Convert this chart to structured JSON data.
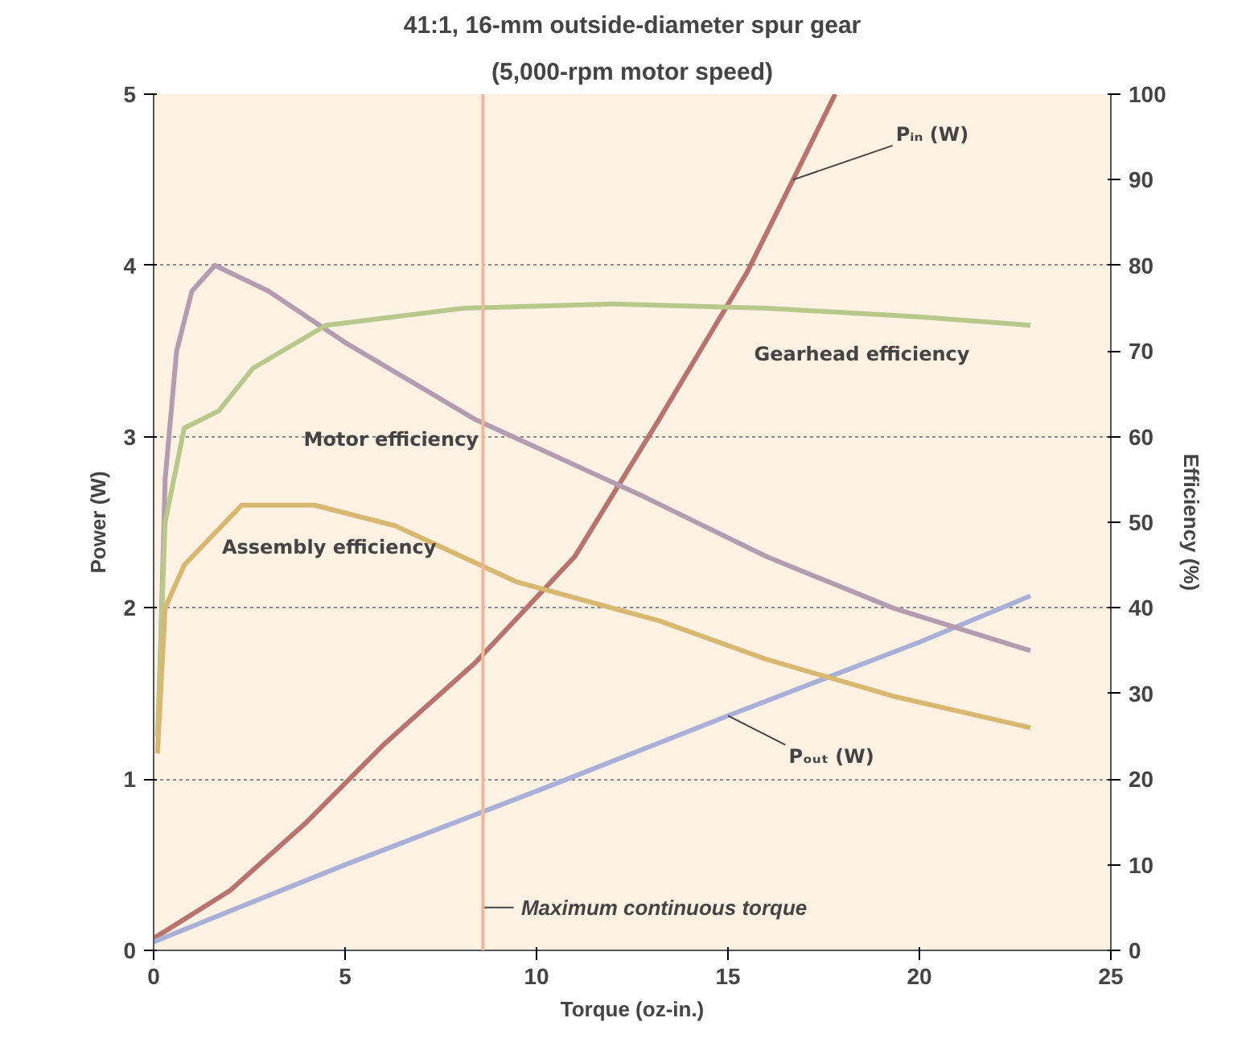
{
  "chart_data": {
    "type": "line",
    "title": "41:1, 16-mm outside-diameter spur gear",
    "subtitle": "(5,000-rpm motor speed)",
    "xlabel": "Torque (oz-in.)",
    "ylabel": "Power (W)",
    "y2label": "Efficiency (%)",
    "xlim": [
      0,
      25
    ],
    "xticks": [
      0,
      5,
      10,
      15,
      20,
      25
    ],
    "ylim": [
      0,
      5
    ],
    "yticks": [
      0,
      1,
      2,
      3,
      4,
      5
    ],
    "y2lim": [
      0,
      100
    ],
    "y2ticks": [
      0,
      10,
      20,
      30,
      40,
      50,
      60,
      70,
      80,
      90,
      100
    ],
    "grid": "y",
    "marker": "none",
    "line_style": "solid",
    "series": [
      {
        "name": "Pᵢₙ (W)",
        "color": "#b8736e",
        "x": [
          0,
          2,
          4,
          6,
          8.4,
          11,
          13.2,
          15.5,
          16.7,
          17.8
        ],
        "values": [
          0.07,
          0.35,
          0.75,
          1.2,
          1.68,
          2.3,
          3.1,
          3.96,
          4.5,
          5.0
        ]
      },
      {
        "name": "Pₒᵤₜ (W)",
        "color": "#a8b0d8",
        "x": [
          0,
          5,
          10,
          15,
          20,
          22.9
        ],
        "values": [
          0.05,
          0.5,
          0.93,
          1.37,
          1.8,
          2.07
        ]
      },
      {
        "name": "Motor efficiency",
        "color": "#b49cb0",
        "axis": "y2",
        "x": [
          0.15,
          0.3,
          0.6,
          1,
          1.6,
          3,
          5,
          8.4,
          12.8,
          16,
          19.3,
          22.9
        ],
        "values": [
          30,
          55,
          70,
          77,
          80,
          77,
          71,
          62,
          53,
          46,
          40,
          35
        ]
      },
      {
        "name": "Gearhead efficiency",
        "color": "#b8c88a",
        "axis": "y2",
        "x": [
          0.1,
          0.3,
          0.8,
          1.7,
          2.6,
          4.5,
          8.1,
          12,
          16,
          20,
          22.9
        ],
        "values": [
          25,
          50,
          61,
          63,
          68,
          73,
          75,
          75.5,
          75,
          74,
          73
        ]
      },
      {
        "name": "Assembly efficiency",
        "color": "#d8b870",
        "axis": "y2",
        "x": [
          0.1,
          0.3,
          0.8,
          2.3,
          4.2,
          6.3,
          9.5,
          13.2,
          16,
          19.3,
          22.9
        ],
        "values": [
          23,
          40,
          45,
          52,
          52,
          49.6,
          43,
          38.5,
          34,
          29.7,
          26
        ]
      }
    ],
    "ref_lines": [
      {
        "axis": "x",
        "value": 8.6,
        "label": "Maximum continuous torque",
        "color": "#f0b89a"
      }
    ]
  }
}
